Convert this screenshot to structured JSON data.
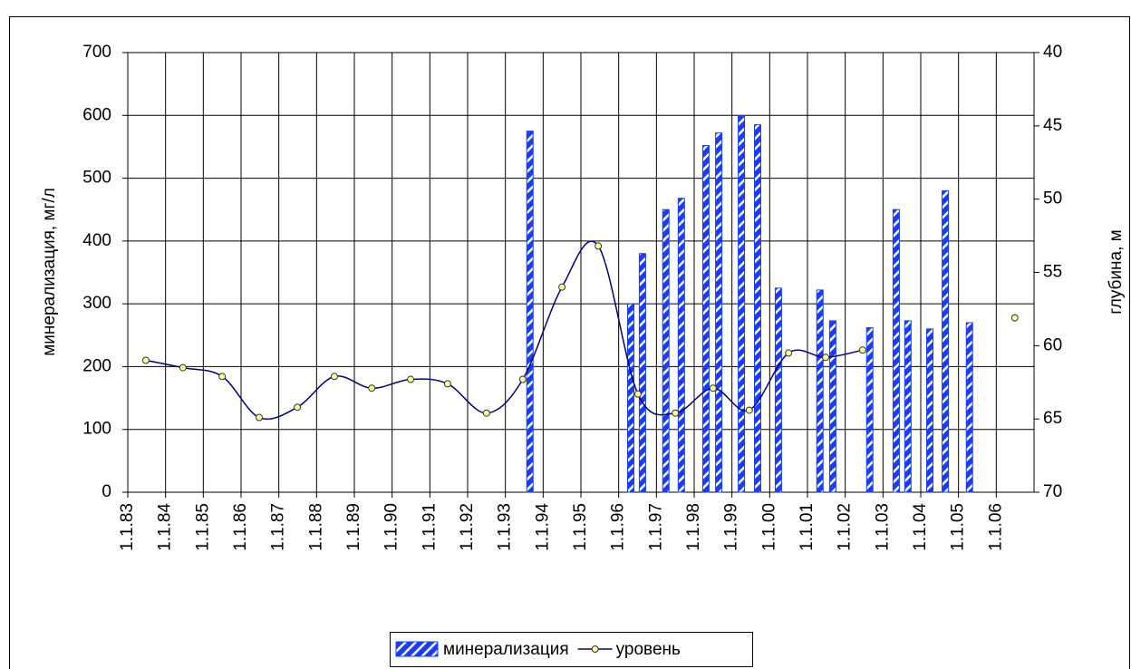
{
  "chart_data": {
    "type": "bar-line",
    "y_label": "минерализация, мг/л",
    "y2_label": "глубина, м",
    "xlim": [
      1983,
      2007
    ],
    "xticks": [
      {
        "value": 1983,
        "label": "1.1.83"
      },
      {
        "value": 1984,
        "label": "1.1.84"
      },
      {
        "value": 1985,
        "label": "1.1.85"
      },
      {
        "value": 1986,
        "label": "1.1.86"
      },
      {
        "value": 1987,
        "label": "1.1.87"
      },
      {
        "value": 1988,
        "label": "1.1.88"
      },
      {
        "value": 1989,
        "label": "1.1.89"
      },
      {
        "value": 1990,
        "label": "1.1.90"
      },
      {
        "value": 1991,
        "label": "1.1.91"
      },
      {
        "value": 1992,
        "label": "1.1.92"
      },
      {
        "value": 1993,
        "label": "1.1.93"
      },
      {
        "value": 1994,
        "label": "1.1.94"
      },
      {
        "value": 1995,
        "label": "1.1.95"
      },
      {
        "value": 1996,
        "label": "1.1.96"
      },
      {
        "value": 1997,
        "label": "1.1.97"
      },
      {
        "value": 1998,
        "label": "1.1.98"
      },
      {
        "value": 1999,
        "label": "1.1.99"
      },
      {
        "value": 2000,
        "label": "1.1.00"
      },
      {
        "value": 2001,
        "label": "1.1.01"
      },
      {
        "value": 2002,
        "label": "1.1.02"
      },
      {
        "value": 2003,
        "label": "1.1.03"
      },
      {
        "value": 2004,
        "label": "1.1.04"
      },
      {
        "value": 2005,
        "label": "1.1.05"
      },
      {
        "value": 2006,
        "label": "1.1.06"
      }
    ],
    "ylim": [
      0,
      700
    ],
    "yticks": [
      0,
      100,
      200,
      300,
      400,
      500,
      600,
      700
    ],
    "y2lim": [
      70,
      40
    ],
    "y2ticks": [
      70,
      65,
      60,
      55,
      50,
      45,
      40
    ],
    "grid": true,
    "legend": "bottom",
    "series": [
      {
        "name": "минерализация",
        "type": "bar",
        "color": "#1a3cff",
        "x": [
          1993.65,
          1996.32,
          1996.63,
          1997.25,
          1997.66,
          1998.31,
          1998.65,
          1999.25,
          1999.68,
          2000.23,
          2001.33,
          2001.67,
          2002.65,
          2003.35,
          2003.66,
          2004.24,
          2004.65,
          2005.29
        ],
        "values": [
          575,
          300,
          380,
          450,
          468,
          552,
          572,
          600,
          585,
          325,
          322,
          273,
          262,
          450,
          273,
          260,
          480,
          270
        ]
      },
      {
        "name": "уровень",
        "type": "line",
        "axis": "y2",
        "color": "#000080",
        "marker_color": "#ffff99",
        "x": [
          1983.48,
          1984.46,
          1985.5,
          1986.48,
          1987.49,
          1988.47,
          1989.46,
          1990.49,
          1991.47,
          1992.5,
          1993.46,
          1994.5,
          1995.46,
          1996.51,
          1997.5,
          1998.5,
          1999.46,
          2000.5,
          2001.48,
          2002.46,
          2003.5,
          2004.5,
          2005.5,
          2006.49
        ],
        "values": [
          61.0,
          61.5,
          62.1,
          64.9,
          64.2,
          62.1,
          62.9,
          62.3,
          62.6,
          64.6,
          62.3,
          56.0,
          53.2,
          63.3,
          64.6,
          62.9,
          64.4,
          60.5,
          60.8,
          60.3,
          null,
          null,
          null,
          58.1
        ]
      }
    ]
  }
}
